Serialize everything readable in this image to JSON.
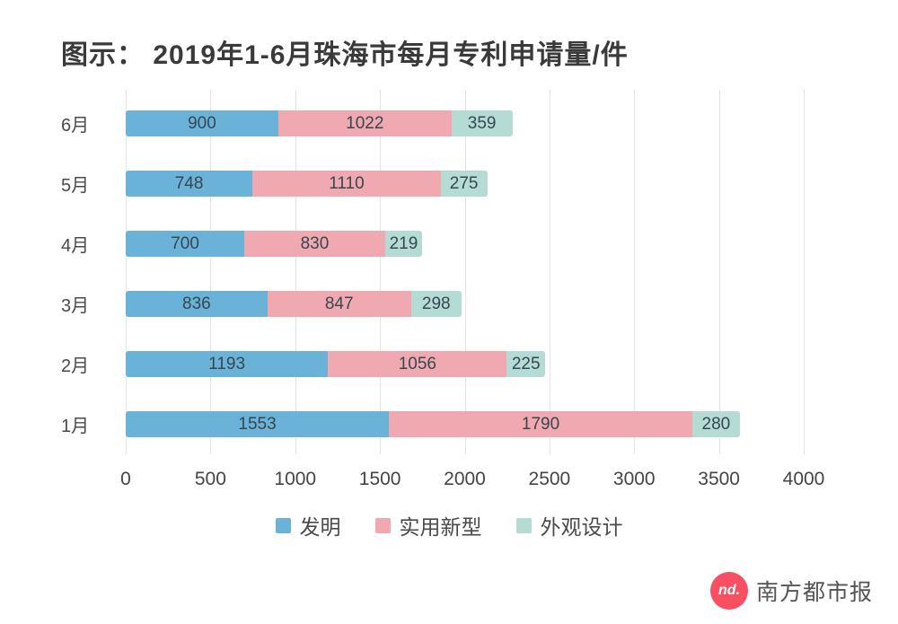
{
  "chart_data": {
    "type": "bar",
    "orientation": "horizontal",
    "stacked": true,
    "title": "图示： 2019年1-6月珠海市每月专利申请量/件",
    "categories": [
      "6月",
      "5月",
      "4月",
      "3月",
      "2月",
      "1月"
    ],
    "series": [
      {
        "name": "发明",
        "color": "#6ab2d8",
        "values": [
          900,
          748,
          700,
          836,
          1193,
          1553
        ]
      },
      {
        "name": "实用新型",
        "color": "#f0a9b1",
        "values": [
          1022,
          1110,
          830,
          847,
          1056,
          1790
        ]
      },
      {
        "name": "外观设计",
        "color": "#b5dbd5",
        "values": [
          359,
          275,
          219,
          298,
          225,
          280
        ]
      }
    ],
    "xlim": [
      0,
      4000
    ],
    "x_ticks": [
      0,
      500,
      1000,
      1500,
      2000,
      2500,
      3000,
      3500,
      4000
    ],
    "grid": true,
    "legend_position": "bottom",
    "xlabel": "",
    "ylabel": ""
  },
  "footer": {
    "logo_text": "nd.",
    "brand": "南方都市报"
  },
  "colors": {
    "grid": "#e4e4e4",
    "value_label": "#37474f",
    "axis_label": "#444444",
    "title": "#3a3a3a",
    "logo_circle": "#fa4f63",
    "brand_text": "#555555"
  }
}
